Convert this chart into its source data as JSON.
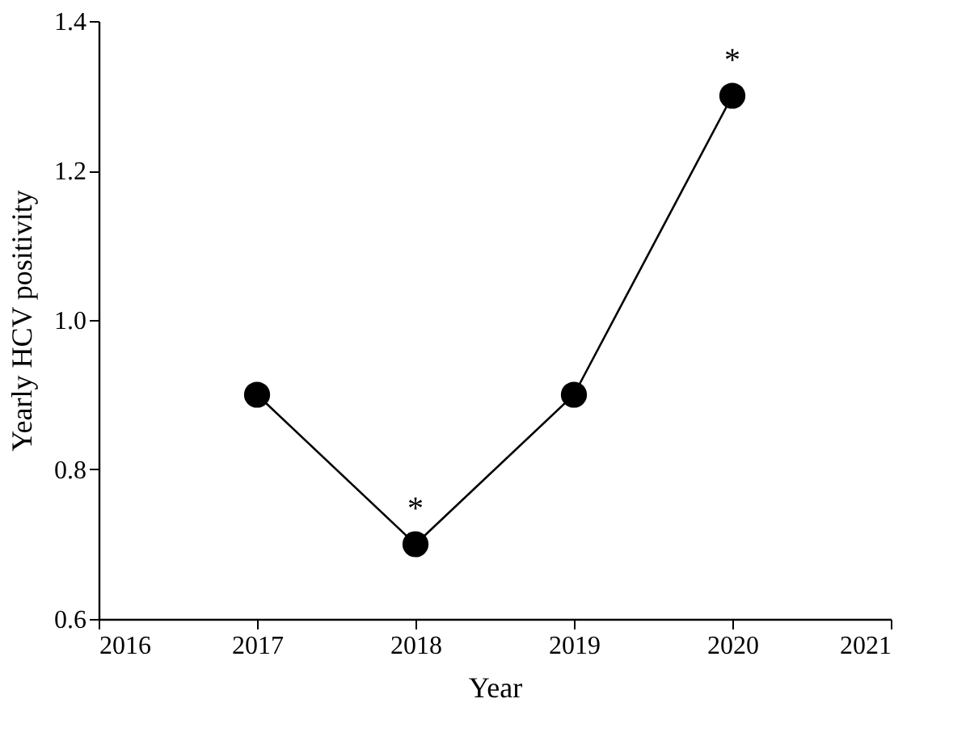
{
  "chart_data": {
    "type": "line",
    "xlabel": "Year",
    "ylabel": "Yearly HCV positivity",
    "x": [
      2017,
      2018,
      2019,
      2020
    ],
    "series": [
      {
        "color": "#000000",
        "values": [
          0.9,
          0.7,
          0.9,
          1.3
        ]
      }
    ],
    "xlim": [
      2016,
      2021
    ],
    "xticks": [
      2016,
      2017,
      2018,
      2019,
      2020,
      2021
    ],
    "ylim": [
      0.6,
      1.4
    ],
    "yticks": [
      0.6,
      0.8,
      {
        "value": 1.0,
        "label": "1.0"
      },
      1.2,
      1.4
    ],
    "annotations": [
      {
        "text": "*",
        "x": 2018,
        "y": 0.7
      },
      {
        "text": "*",
        "x": 2020,
        "y": 1.3
      }
    ],
    "grid": false,
    "marker": "circle",
    "line_style": "solid"
  }
}
